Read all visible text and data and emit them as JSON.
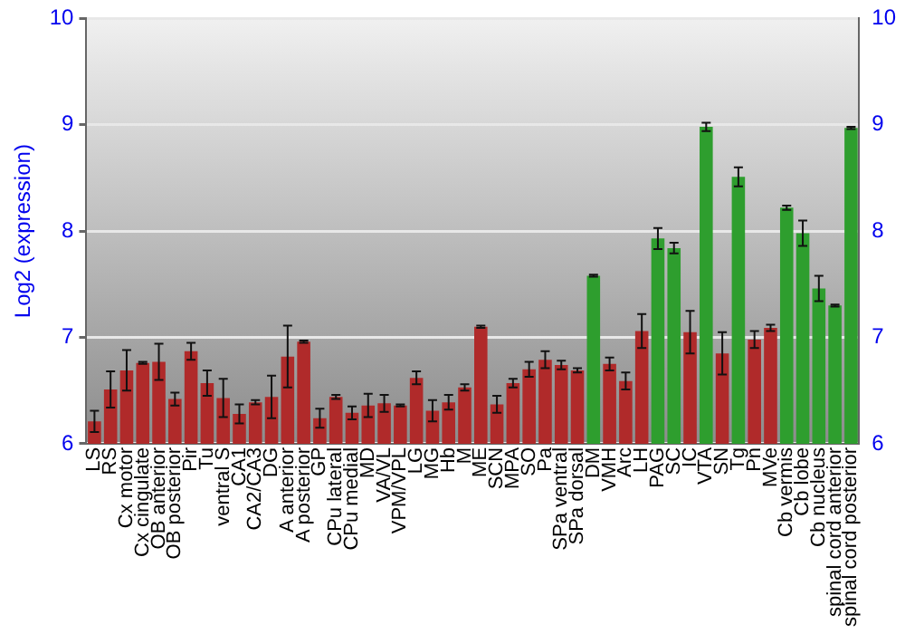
{
  "chart_data": {
    "type": "bar",
    "ylabel": "Log2 (expression)",
    "categories": [
      "LS",
      "RS",
      "Cx motor",
      "Cx cingulate",
      "OB anterior",
      "OB posterior",
      "Pir",
      "Tu",
      "ventral S",
      "CA1",
      "CA2/CA3",
      "DG",
      "A anterior",
      "A posterior",
      "GP",
      "CPu lateral",
      "CPu medial",
      "MD",
      "VA/VL",
      "VPM/VPL",
      "LG",
      "MG",
      "Hb",
      "M",
      "ME",
      "SCN",
      "MPA",
      "SO",
      "Pa",
      "SPa ventral",
      "SPa dorsal",
      "DM",
      "VMH",
      "Arc",
      "LH",
      "PAG",
      "SC",
      "IC",
      "VTA",
      "SN",
      "Tg",
      "Pn",
      "MVe",
      "Cb vermis",
      "Cb lobe",
      "Cb nucleus",
      "spinal cord anterior",
      "spinal cord posterior"
    ],
    "values": [
      6.21,
      6.51,
      6.69,
      6.76,
      6.77,
      6.42,
      6.87,
      6.57,
      6.43,
      6.28,
      6.39,
      6.44,
      6.82,
      6.96,
      6.24,
      6.44,
      6.29,
      6.36,
      6.38,
      6.36,
      6.62,
      6.31,
      6.39,
      6.53,
      7.1,
      6.37,
      6.57,
      6.7,
      6.79,
      6.74,
      6.69,
      7.58,
      6.75,
      6.59,
      7.06,
      7.93,
      7.84,
      7.05,
      8.98,
      6.85,
      8.51,
      6.98,
      7.09,
      8.22,
      7.98,
      7.46,
      7.3,
      8.97
    ],
    "errors": [
      0.1,
      0.17,
      0.19,
      0.01,
      0.17,
      0.06,
      0.08,
      0.12,
      0.18,
      0.09,
      0.02,
      0.2,
      0.29,
      0.01,
      0.09,
      0.02,
      0.06,
      0.11,
      0.08,
      0.01,
      0.06,
      0.1,
      0.07,
      0.03,
      0.01,
      0.08,
      0.04,
      0.07,
      0.08,
      0.04,
      0.02,
      0.01,
      0.06,
      0.08,
      0.16,
      0.1,
      0.05,
      0.2,
      0.04,
      0.2,
      0.09,
      0.08,
      0.03,
      0.02,
      0.12,
      0.12,
      0.01,
      0.01
    ],
    "colors": [
      "#b02a2a",
      "#b02a2a",
      "#b02a2a",
      "#b02a2a",
      "#b02a2a",
      "#b02a2a",
      "#b02a2a",
      "#b02a2a",
      "#b02a2a",
      "#b02a2a",
      "#b02a2a",
      "#b02a2a",
      "#b02a2a",
      "#b02a2a",
      "#b02a2a",
      "#b02a2a",
      "#b02a2a",
      "#b02a2a",
      "#b02a2a",
      "#b02a2a",
      "#b02a2a",
      "#b02a2a",
      "#b02a2a",
      "#b02a2a",
      "#b02a2a",
      "#b02a2a",
      "#b02a2a",
      "#b02a2a",
      "#b02a2a",
      "#b02a2a",
      "#b02a2a",
      "#2e9e2e",
      "#b02a2a",
      "#b02a2a",
      "#b02a2a",
      "#2e9e2e",
      "#2e9e2e",
      "#b02a2a",
      "#2e9e2e",
      "#b02a2a",
      "#2e9e2e",
      "#b02a2a",
      "#b02a2a",
      "#2e9e2e",
      "#2e9e2e",
      "#2e9e2e",
      "#2e9e2e",
      "#2e9e2e"
    ],
    "ylim": [
      6,
      10
    ],
    "yticks": [
      6,
      7,
      8,
      9,
      10
    ],
    "y2lim": [
      6,
      10
    ],
    "y2ticks": [
      6,
      7,
      8,
      9,
      10
    ],
    "grid": "y",
    "legend": false
  }
}
